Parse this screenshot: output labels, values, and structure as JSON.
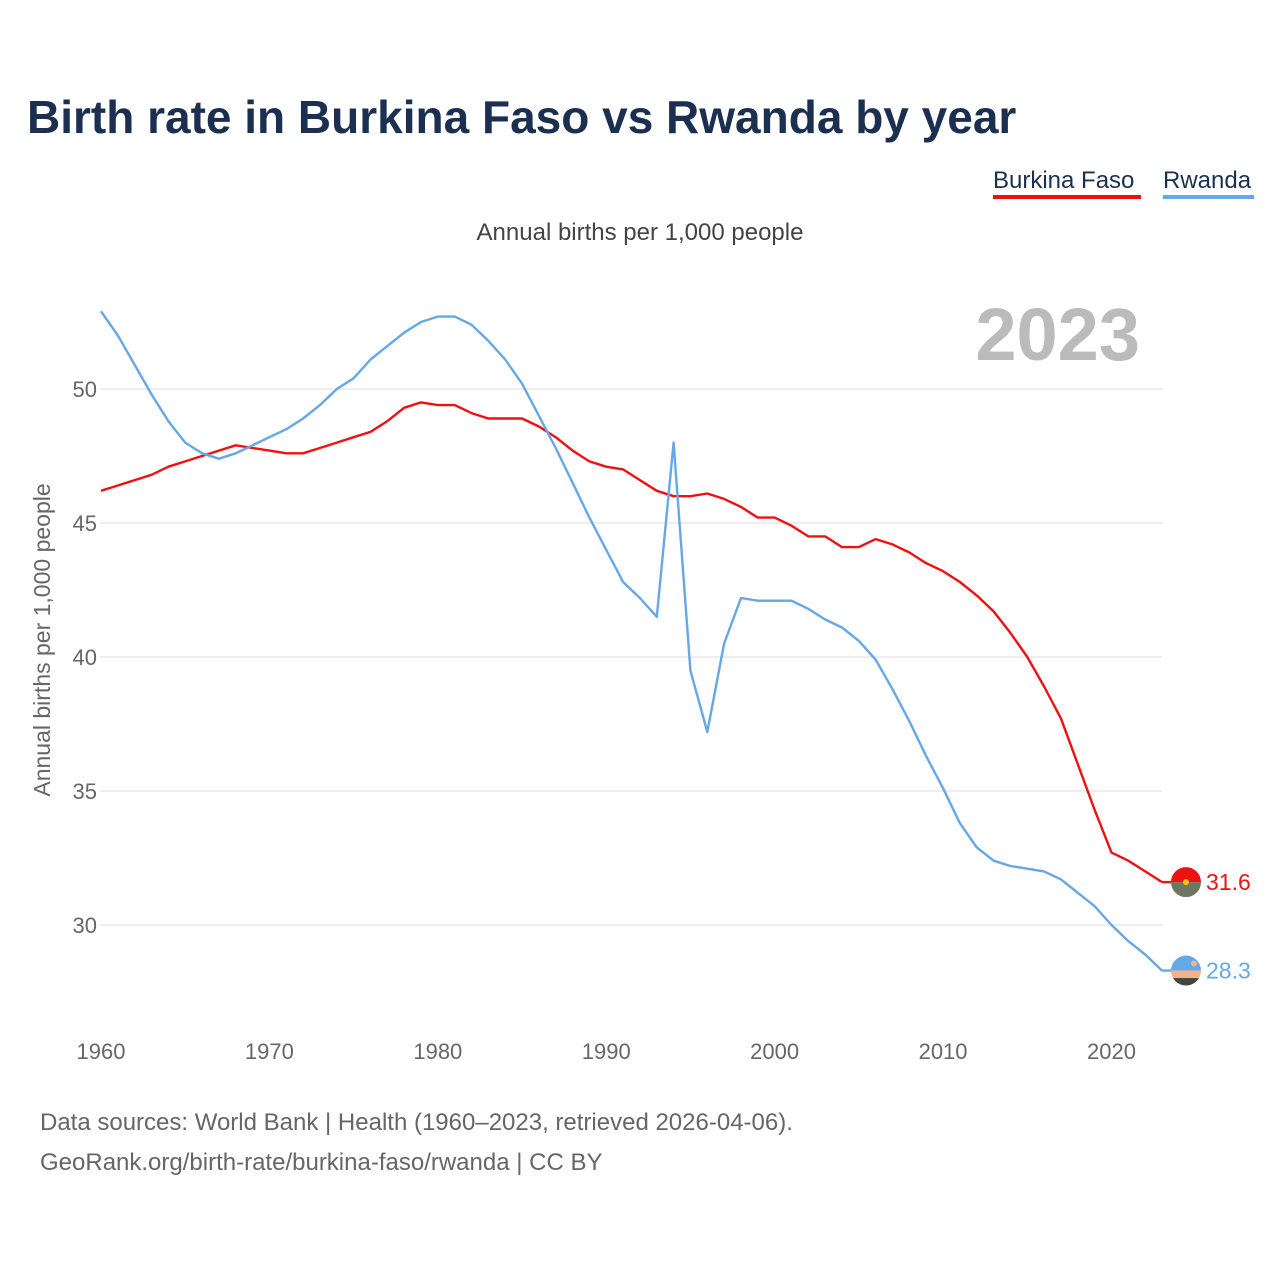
{
  "chart_data": {
    "type": "line",
    "title": "Birth rate in Burkina Faso vs Rwanda by year",
    "subtitle": "Annual births per 1,000 people",
    "ylabel": "Annual births per 1,000 people",
    "xlabel": "",
    "current_year": "2023",
    "xlim": [
      1960,
      2023
    ],
    "ylim": [
      26.8,
      53.8
    ],
    "x_ticks": [
      1960,
      1970,
      1980,
      1990,
      2000,
      2010,
      2020
    ],
    "y_ticks": [
      30,
      35,
      40,
      45,
      50
    ],
    "legend_position": "top-right",
    "x": [
      1960,
      1961,
      1962,
      1963,
      1964,
      1965,
      1966,
      1967,
      1968,
      1969,
      1970,
      1971,
      1972,
      1973,
      1974,
      1975,
      1976,
      1977,
      1978,
      1979,
      1980,
      1981,
      1982,
      1983,
      1984,
      1985,
      1986,
      1987,
      1988,
      1989,
      1990,
      1991,
      1992,
      1993,
      1994,
      1995,
      1996,
      1997,
      1998,
      1999,
      2000,
      2001,
      2002,
      2003,
      2004,
      2005,
      2006,
      2007,
      2008,
      2009,
      2010,
      2011,
      2012,
      2013,
      2014,
      2015,
      2016,
      2017,
      2018,
      2019,
      2020,
      2021,
      2022,
      2023
    ],
    "series": [
      {
        "name": "Burkina Faso",
        "color": "#ee1111",
        "end_label": "31.6",
        "flag": "burkina-faso-flag-icon",
        "values": [
          46.2,
          46.4,
          46.6,
          46.8,
          47.1,
          47.3,
          47.5,
          47.7,
          47.9,
          47.8,
          47.7,
          47.6,
          47.6,
          47.8,
          48.0,
          48.2,
          48.4,
          48.8,
          49.3,
          49.5,
          49.4,
          49.4,
          49.1,
          48.9,
          48.9,
          48.9,
          48.6,
          48.2,
          47.7,
          47.3,
          47.1,
          47.0,
          46.6,
          46.2,
          46.0,
          46.0,
          46.1,
          45.9,
          45.6,
          45.2,
          45.2,
          44.9,
          44.5,
          44.5,
          44.1,
          44.1,
          44.4,
          44.2,
          43.9,
          43.5,
          43.2,
          42.8,
          42.3,
          41.7,
          40.9,
          40.0,
          38.9,
          37.7,
          36.0,
          34.3,
          32.7,
          32.4,
          32.0,
          31.6
        ]
      },
      {
        "name": "Rwanda",
        "color": "#66a8e6",
        "end_label": "28.3",
        "flag": "rwanda-flag-icon",
        "values": [
          52.9,
          52.0,
          50.9,
          49.8,
          48.8,
          48.0,
          47.6,
          47.4,
          47.6,
          47.9,
          48.2,
          48.5,
          48.9,
          49.4,
          50.0,
          50.4,
          51.1,
          51.6,
          52.1,
          52.5,
          52.7,
          52.7,
          52.4,
          51.8,
          51.1,
          50.2,
          49.0,
          47.8,
          46.5,
          45.2,
          44.0,
          42.8,
          42.2,
          41.5,
          48.0,
          39.5,
          37.2,
          40.5,
          42.2,
          42.1,
          42.1,
          42.1,
          41.8,
          41.4,
          41.1,
          40.6,
          39.9,
          38.8,
          37.6,
          36.3,
          35.1,
          33.8,
          32.9,
          32.4,
          32.2,
          32.1,
          32.0,
          31.7,
          31.2,
          30.7,
          30.0,
          29.4,
          28.9,
          28.3
        ]
      }
    ]
  },
  "footer": {
    "source_line": "Data sources: World Bank | Health (1960–2023, retrieved 2026-04-06).",
    "url_line": "GeoRank.org/birth-rate/burkina-faso/rwanda | CC BY"
  }
}
